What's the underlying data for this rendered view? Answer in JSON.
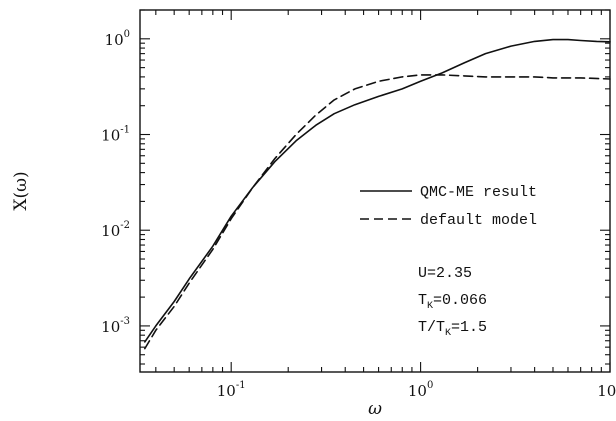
{
  "chart_data": {
    "type": "line",
    "xlabel": "ω",
    "ylabel": "X(ω)",
    "xscale": "log",
    "yscale": "log",
    "xlim": [
      0.033,
      10
    ],
    "ylim": [
      0.00033,
      2.0
    ],
    "x_ticks": [
      {
        "value": 0.1,
        "base": "10",
        "exp": "-1"
      },
      {
        "value": 1,
        "base": "10",
        "exp": "0"
      },
      {
        "value": 10,
        "base": "10",
        "exp": "1"
      }
    ],
    "y_ticks": [
      {
        "value": 0.001,
        "base": "10",
        "exp": "-3"
      },
      {
        "value": 0.01,
        "base": "10",
        "exp": "-2"
      },
      {
        "value": 0.1,
        "base": "10",
        "exp": "-1"
      },
      {
        "value": 1,
        "base": "10",
        "exp": "0"
      }
    ],
    "legend_position": "right",
    "series": [
      {
        "name": "QMC-ME result",
        "style": "solid",
        "x": [
          0.035,
          0.04,
          0.05,
          0.06,
          0.08,
          0.1,
          0.13,
          0.17,
          0.22,
          0.28,
          0.35,
          0.45,
          0.6,
          0.8,
          1.0,
          1.3,
          1.7,
          2.2,
          3.0,
          4.0,
          5.0,
          6.0,
          7.0,
          8.5,
          10
        ],
        "y": [
          0.00068,
          0.001,
          0.0018,
          0.0031,
          0.0068,
          0.014,
          0.028,
          0.052,
          0.086,
          0.125,
          0.165,
          0.205,
          0.25,
          0.3,
          0.36,
          0.44,
          0.56,
          0.7,
          0.84,
          0.94,
          0.98,
          0.98,
          0.96,
          0.94,
          0.93
        ]
      },
      {
        "name": "default model",
        "style": "dashed",
        "x": [
          0.035,
          0.04,
          0.05,
          0.06,
          0.08,
          0.1,
          0.13,
          0.17,
          0.22,
          0.28,
          0.35,
          0.45,
          0.6,
          0.8,
          1.0,
          1.3,
          1.7,
          2.2,
          3.0,
          4.0,
          5.0,
          7.0,
          10
        ],
        "y": [
          0.00058,
          0.0009,
          0.0016,
          0.0028,
          0.0063,
          0.0132,
          0.028,
          0.056,
          0.1,
          0.16,
          0.23,
          0.3,
          0.36,
          0.4,
          0.42,
          0.42,
          0.41,
          0.4,
          0.4,
          0.4,
          0.39,
          0.39,
          0.38
        ]
      }
    ],
    "annotations": {
      "u": "U=2.35",
      "tk_prefix": "T",
      "tk_sub": "K",
      "tk_value": "=0.066",
      "ratio_prefix": "T/T",
      "ratio_sub": "K",
      "ratio_value": "=1.5"
    }
  }
}
